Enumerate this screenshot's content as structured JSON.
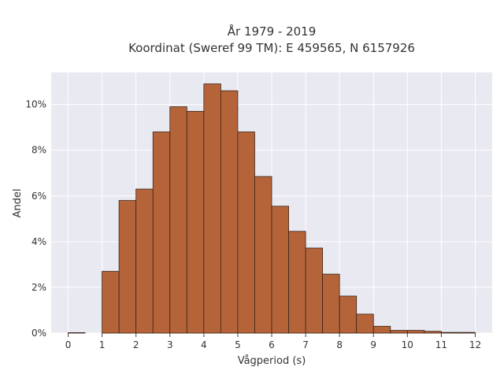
{
  "chart_data": {
    "type": "bar",
    "title": "År 1979 - 2019",
    "subtitle": "Koordinat (Sweref 99 TM): E 459565, N 6157926",
    "xlabel": "Vågperiod (s)",
    "ylabel": "Andel",
    "bin_width": 0.5,
    "x": [
      0,
      0.5,
      1,
      1.5,
      2,
      2.5,
      3,
      3.5,
      4,
      4.5,
      5,
      5.5,
      6,
      6.5,
      7,
      7.5,
      8,
      8.5,
      9,
      9.5,
      10,
      10.5,
      11,
      11.5
    ],
    "values": [
      0.02,
      0,
      2.7,
      5.8,
      6.3,
      8.8,
      9.9,
      9.7,
      10.9,
      10.6,
      8.8,
      6.85,
      5.55,
      4.45,
      3.72,
      2.58,
      1.62,
      0.83,
      0.3,
      0.12,
      0.12,
      0.08,
      0.03,
      0.03
    ],
    "xlim": [
      -0.5,
      12.5
    ],
    "ylim": [
      0,
      11.4
    ],
    "x_ticks": [
      0,
      1,
      2,
      3,
      4,
      5,
      6,
      7,
      8,
      9,
      10,
      11,
      12
    ],
    "x_tick_labels": [
      "0",
      "1",
      "2",
      "3",
      "4",
      "5",
      "6",
      "7",
      "8",
      "9",
      "10",
      "11",
      "12"
    ],
    "y_ticks": [
      0,
      2,
      4,
      6,
      8,
      10
    ],
    "y_tick_labels": [
      "0%",
      "2%",
      "4%",
      "6%",
      "8%",
      "10%"
    ],
    "grid": true,
    "colors": {
      "bar_fill": "#b5643a",
      "bar_stroke": "#3a2418",
      "plot_bg": "#e9e9f1",
      "grid": "#ffffff",
      "text": "#333333"
    }
  }
}
